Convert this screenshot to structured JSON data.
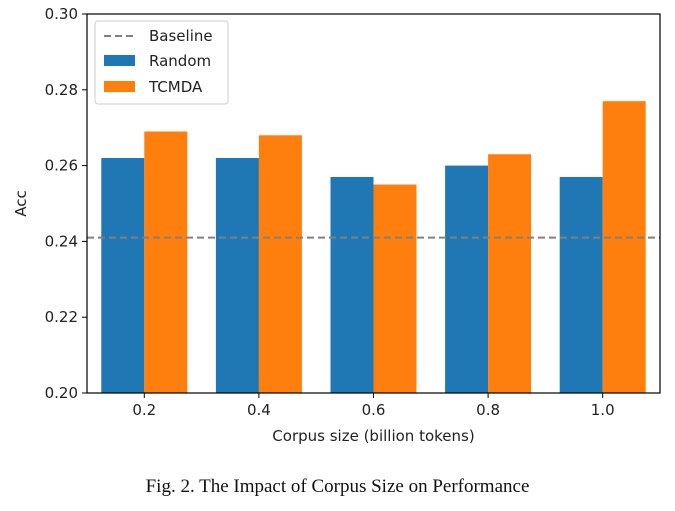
{
  "chart_data": {
    "type": "bar",
    "categories": [
      "0.2",
      "0.4",
      "0.6",
      "0.8",
      "1.0"
    ],
    "series": [
      {
        "name": "Random",
        "values": [
          0.262,
          0.262,
          0.257,
          0.26,
          0.257
        ],
        "color": "#1f77b4"
      },
      {
        "name": "TCMDA",
        "values": [
          0.269,
          0.268,
          0.255,
          0.263,
          0.277
        ],
        "color": "#ff7f0e"
      }
    ],
    "baseline": {
      "name": "Baseline",
      "value": 0.241,
      "color": "#808080",
      "style": "dashed"
    },
    "xlabel": "Corpus size (billion tokens)",
    "ylabel": "Acc",
    "ylim": [
      0.2,
      0.3
    ],
    "yticks": [
      "0.20",
      "0.22",
      "0.24",
      "0.26",
      "0.28",
      "0.30"
    ],
    "grid": false,
    "legend_position": "top-left"
  },
  "caption": "Fig. 2.  The Impact of Corpus Size on Performance"
}
